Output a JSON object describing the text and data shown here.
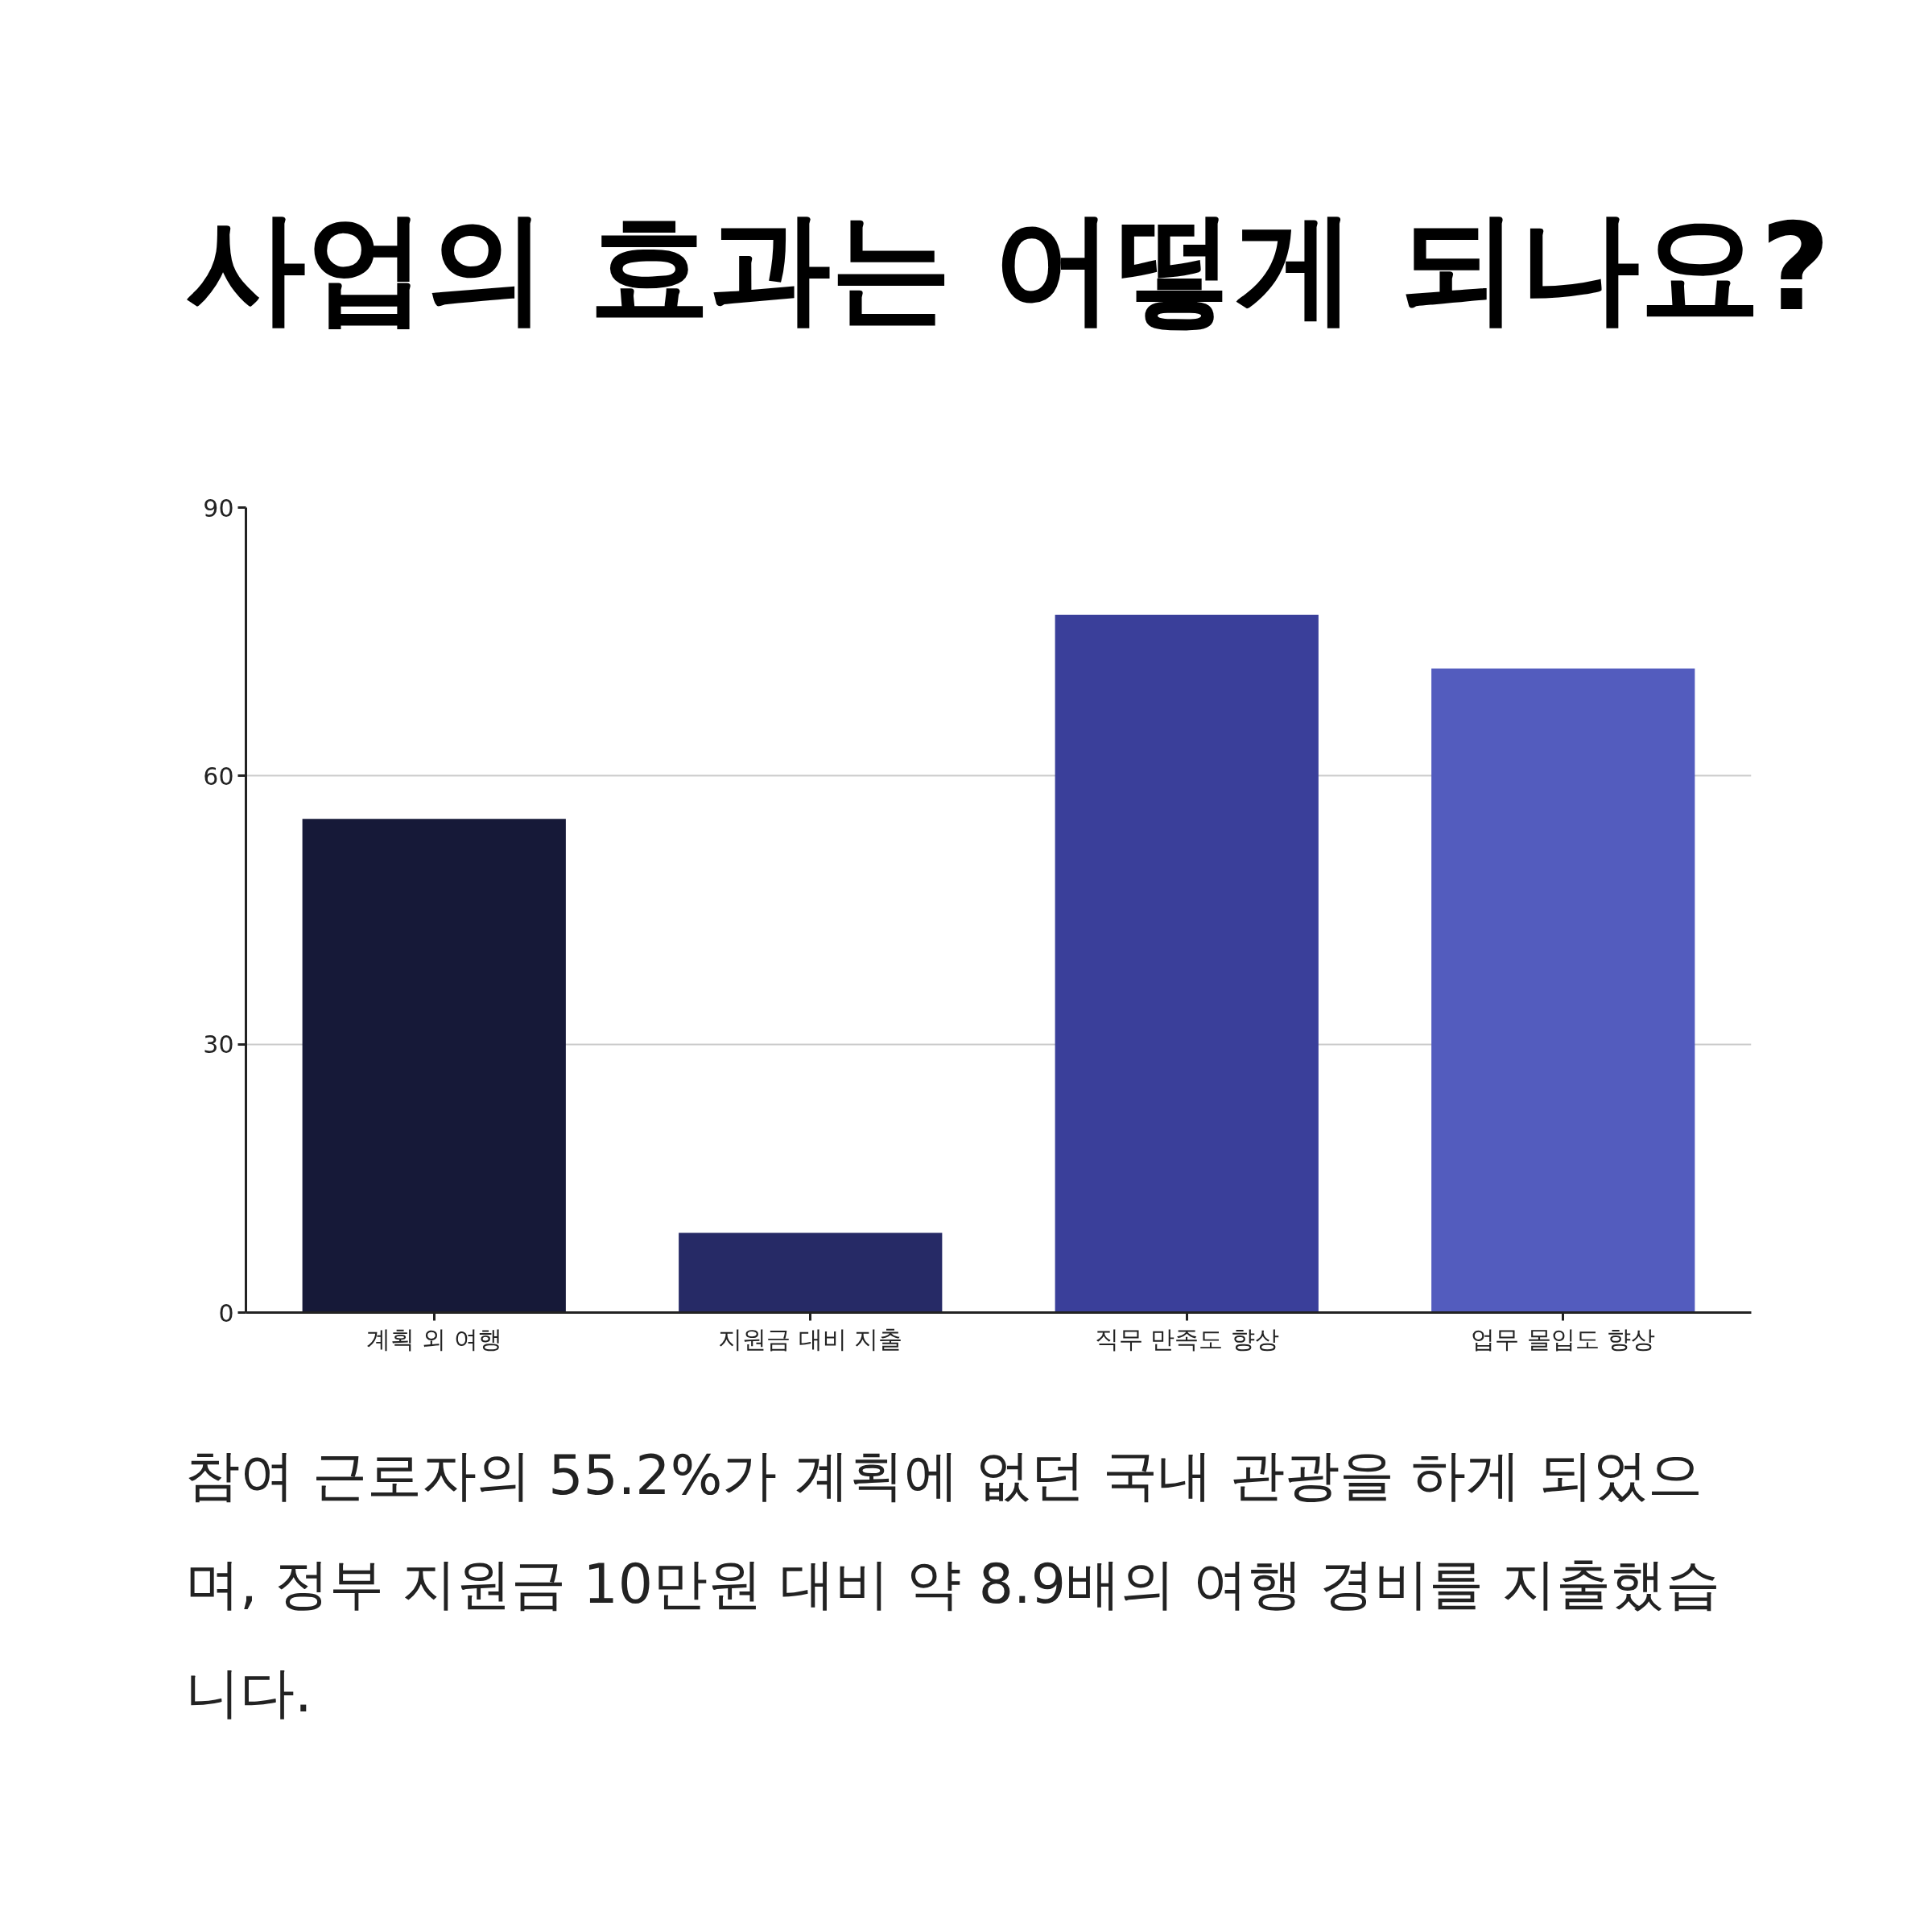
{
  "chart_data": {
    "type": "bar",
    "title": "사업의 효과는 어떻게 되나요?",
    "categories": [
      "계획 외 여행",
      "지원금 대비 지출",
      "직무 만족도 향상",
      "업무 몰입도 향상"
    ],
    "values": [
      55.2,
      8.9,
      78,
      72
    ],
    "colors": [
      "#161938",
      "#262a66",
      "#3a3f9a",
      "#535cbe"
    ],
    "ylim": [
      0,
      90
    ],
    "yticks": [
      0,
      30,
      60,
      90
    ],
    "grid": "y",
    "annotations": [
      "참여 근로자의 55.2%가 계획에 없던 국내 관광을 하게 되었으며, 정부 지원금 10만원 대비 약 8.9배의 여행 경비를 지출했습니다."
    ]
  }
}
